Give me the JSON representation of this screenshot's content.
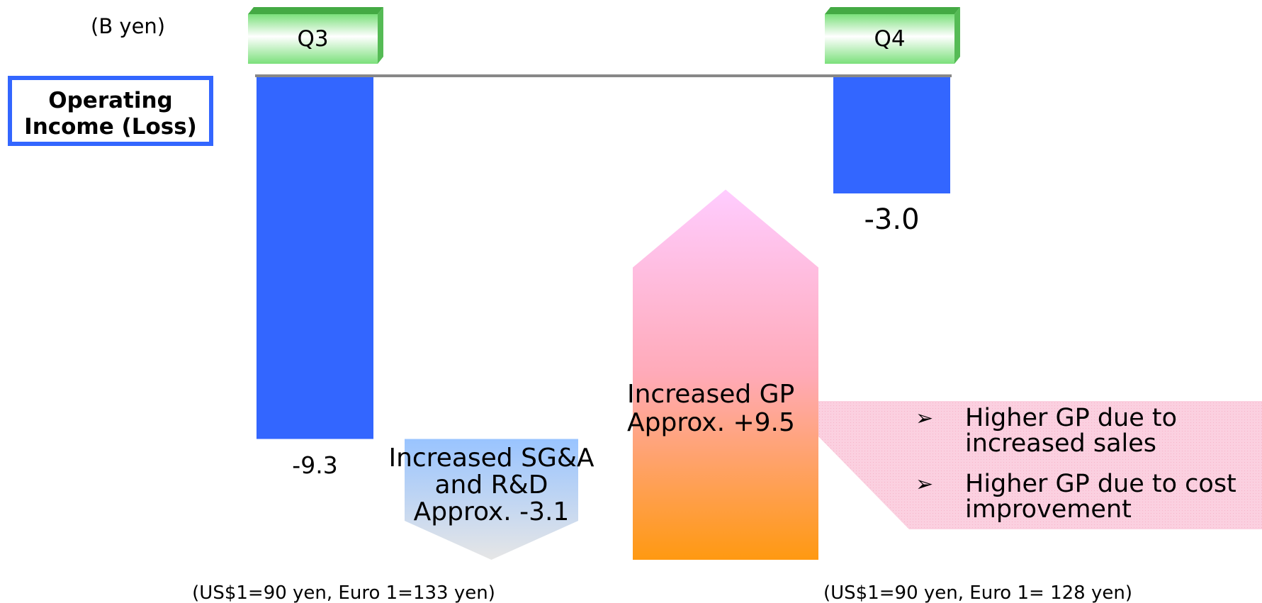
{
  "chart_data": {
    "type": "waterfall",
    "unit_label": "(B yen)",
    "row_label": "Operating Income (Loss)",
    "categories": [
      "Q3",
      "Increased SG&A and R&D",
      "Increased GP",
      "Q4"
    ],
    "values": [
      -9.3,
      -3.1,
      9.5,
      -3.0
    ],
    "value_labels": [
      "-9.3",
      "Approx. -3.1",
      "Approx. +9.5",
      "-3.0"
    ],
    "color": "#3366ff",
    "notes": [
      "Higher GP due to increased sales",
      "Higher GP due to cost improvement"
    ],
    "footnotes": [
      "(US$1=90 yen, Euro 1=133 yen)",
      "(US$1=90 yen, Euro 1= 128 yen)"
    ]
  }
}
